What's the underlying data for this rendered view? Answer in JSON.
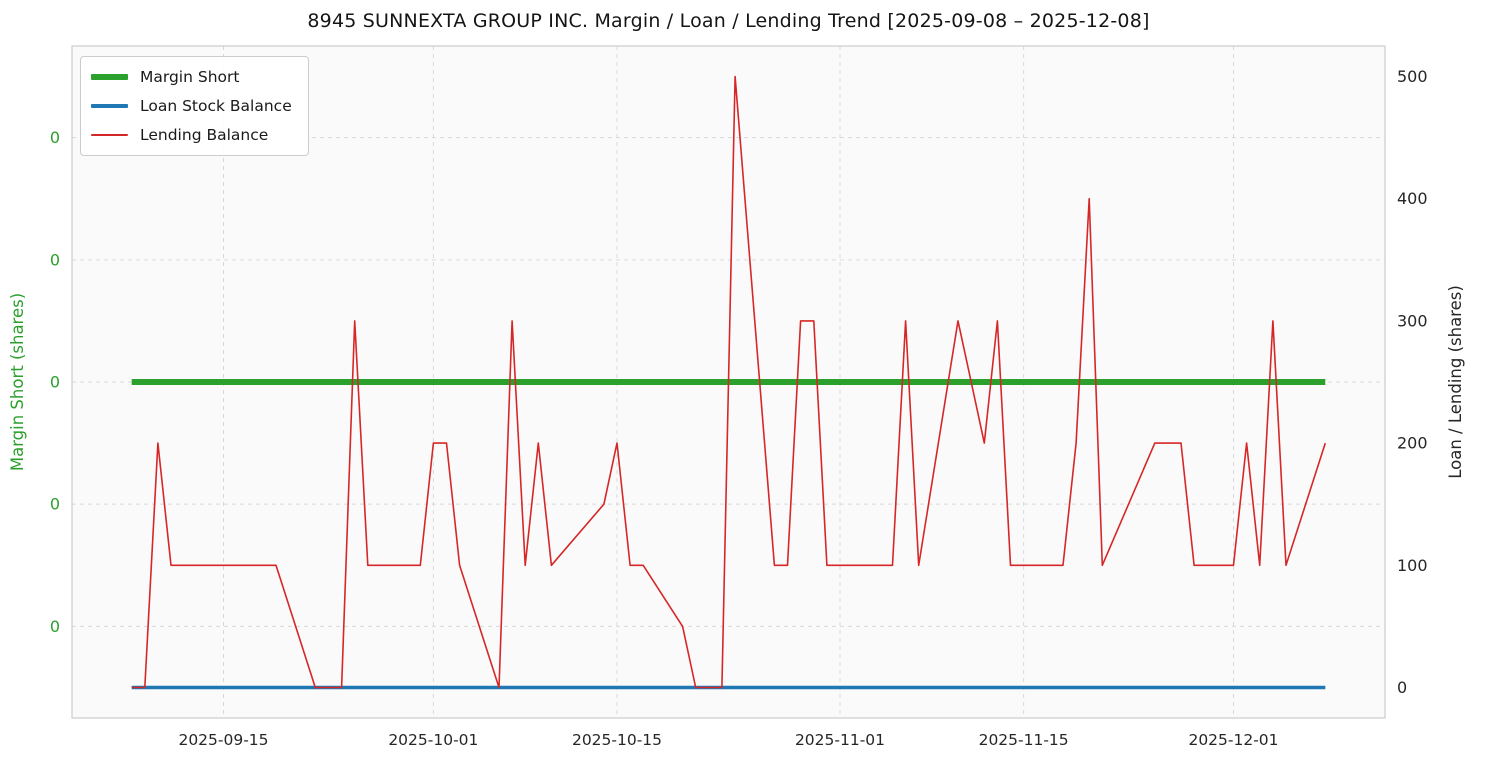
{
  "title": "8945 SUNNEXTA GROUP INC. Margin / Loan / Lending Trend [2025-09-08 – 2025-12-08]",
  "chart_data": {
    "type": "line",
    "title": "8945 SUNNEXTA GROUP INC. Margin / Loan / Lending Trend [2025-09-08 – 2025-12-08]",
    "xlabel": "",
    "ylabel_left": "Margin Short (shares)",
    "ylabel_right": "Loan / Lending (shares)",
    "left_axis_color": "#2ca02c",
    "right_axis_color": "#262626",
    "grid": true,
    "legend_position": "upper left",
    "x_tick_labels": [
      "2025-09-15",
      "2025-10-01",
      "2025-10-15",
      "2025-11-01",
      "2025-11-15",
      "2025-12-01"
    ],
    "left_tick_labels": [
      "0",
      "0",
      "0",
      "0",
      "0"
    ],
    "right_ticks": [
      0,
      100,
      200,
      300,
      400,
      500
    ],
    "right_ylim": [
      -25,
      525
    ],
    "x": [
      "2025-09-08",
      "2025-09-09",
      "2025-09-10",
      "2025-09-11",
      "2025-09-12",
      "2025-09-16",
      "2025-09-17",
      "2025-09-18",
      "2025-09-19",
      "2025-09-22",
      "2025-09-24",
      "2025-09-25",
      "2025-09-26",
      "2025-09-29",
      "2025-09-30",
      "2025-10-01",
      "2025-10-02",
      "2025-10-03",
      "2025-10-06",
      "2025-10-07",
      "2025-10-08",
      "2025-10-09",
      "2025-10-10",
      "2025-10-14",
      "2025-10-15",
      "2025-10-16",
      "2025-10-17",
      "2025-10-20",
      "2025-10-21",
      "2025-10-22",
      "2025-10-23",
      "2025-10-24",
      "2025-10-27",
      "2025-10-28",
      "2025-10-29",
      "2025-10-30",
      "2025-10-31",
      "2025-11-04",
      "2025-11-05",
      "2025-11-06",
      "2025-11-07",
      "2025-11-10",
      "2025-11-11",
      "2025-11-12",
      "2025-11-13",
      "2025-11-14",
      "2025-11-17",
      "2025-11-18",
      "2025-11-19",
      "2025-11-20",
      "2025-11-21",
      "2025-11-25",
      "2025-11-26",
      "2025-11-27",
      "2025-11-28",
      "2025-12-01",
      "2025-12-02",
      "2025-12-03",
      "2025-12-04",
      "2025-12-05",
      "2025-12-08"
    ],
    "series": [
      {
        "name": "Margin Short",
        "axis": "left",
        "color": "#2ca02c",
        "linewidth": 6,
        "values": [
          0,
          0,
          0,
          0,
          0,
          0,
          0,
          0,
          0,
          0,
          0,
          0,
          0,
          0,
          0,
          0,
          0,
          0,
          0,
          0,
          0,
          0,
          0,
          0,
          0,
          0,
          0,
          0,
          0,
          0,
          0,
          0,
          0,
          0,
          0,
          0,
          0,
          0,
          0,
          0,
          0,
          0,
          0,
          0,
          0,
          0,
          0,
          0,
          0,
          0,
          0,
          0,
          0,
          0,
          0,
          0,
          0,
          0,
          0,
          0,
          0
        ]
      },
      {
        "name": "Loan Stock Balance",
        "axis": "right",
        "color": "#1f77b4",
        "linewidth": 3.5,
        "values": [
          0,
          0,
          0,
          0,
          0,
          0,
          0,
          0,
          0,
          0,
          0,
          0,
          0,
          0,
          0,
          0,
          0,
          0,
          0,
          0,
          0,
          0,
          0,
          0,
          0,
          0,
          0,
          0,
          0,
          0,
          0,
          0,
          0,
          0,
          0,
          0,
          0,
          0,
          0,
          0,
          0,
          0,
          0,
          0,
          0,
          0,
          0,
          0,
          0,
          0,
          0,
          0,
          0,
          0,
          0,
          0,
          0,
          0,
          0,
          0,
          0
        ]
      },
      {
        "name": "Lending Balance",
        "axis": "right",
        "color": "#d62728",
        "linewidth": 1.6,
        "values": [
          0,
          0,
          200,
          100,
          100,
          100,
          100,
          100,
          100,
          0,
          0,
          300,
          100,
          100,
          100,
          200,
          200,
          100,
          0,
          300,
          100,
          200,
          100,
          150,
          200,
          100,
          100,
          50,
          0,
          0,
          0,
          500,
          100,
          100,
          300,
          300,
          100,
          100,
          100,
          300,
          100,
          300,
          250,
          200,
          300,
          100,
          100,
          100,
          200,
          400,
          100,
          200,
          200,
          200,
          100,
          100,
          200,
          100,
          300,
          100,
          200
        ]
      }
    ]
  }
}
